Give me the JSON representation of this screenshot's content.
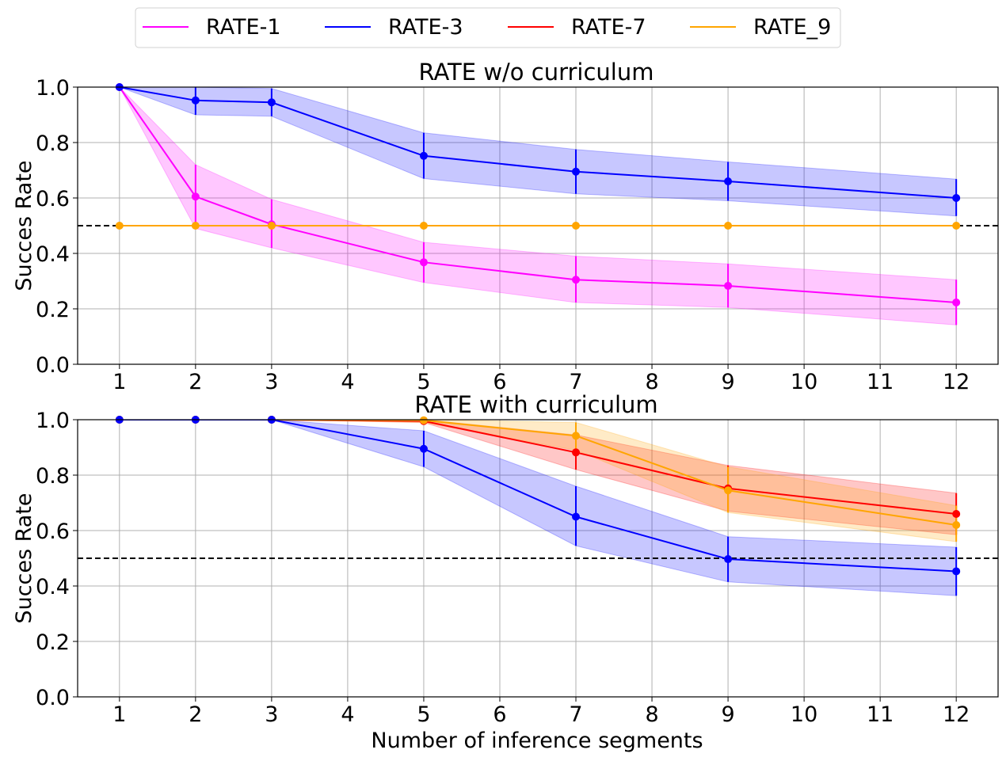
{
  "legend": {
    "entries": [
      {
        "label": "RATE-1",
        "color": "#ff00ff"
      },
      {
        "label": "RATE-3",
        "color": "#0000ff"
      },
      {
        "label": "RATE-7",
        "color": "#ff0000"
      },
      {
        "label": "RATE_9",
        "color": "#ffa500"
      }
    ]
  },
  "chart_data": [
    {
      "type": "line",
      "title": "RATE w/o curriculum",
      "xlabel": "",
      "ylabel": "Succes Rate",
      "xlim": [
        0.45,
        12.55
      ],
      "ylim": [
        0.0,
        1.0
      ],
      "xticks": [
        1,
        2,
        3,
        4,
        5,
        6,
        7,
        8,
        9,
        10,
        11,
        12
      ],
      "yticks": [
        "0.0",
        "0.2",
        "0.4",
        "0.6",
        "0.8",
        "1.0"
      ],
      "grid": true,
      "reference_line": {
        "y": 0.5,
        "style": "dashed",
        "color": "#000000"
      },
      "series": [
        {
          "name": "RATE-1",
          "color": "#ff00ff",
          "x": [
            1,
            2,
            3,
            5,
            7,
            9,
            12
          ],
          "values": [
            1.0,
            0.605,
            0.505,
            0.368,
            0.305,
            0.283,
            0.223
          ],
          "band_low": [
            1.0,
            0.49,
            0.42,
            0.295,
            0.223,
            0.205,
            0.142
          ],
          "band_high": [
            1.0,
            0.72,
            0.595,
            0.44,
            0.39,
            0.362,
            0.305
          ]
        },
        {
          "name": "RATE-3",
          "color": "#0000ff",
          "x": [
            1,
            2,
            3,
            5,
            7,
            9,
            12
          ],
          "values": [
            1.0,
            0.952,
            0.945,
            0.752,
            0.695,
            0.66,
            0.6
          ],
          "band_low": [
            1.0,
            0.9,
            0.895,
            0.67,
            0.615,
            0.59,
            0.535
          ],
          "band_high": [
            1.0,
            1.0,
            0.995,
            0.835,
            0.775,
            0.73,
            0.668
          ]
        },
        {
          "name": "RATE_9",
          "color": "#ffa500",
          "x": [
            1,
            2,
            3,
            5,
            7,
            9,
            12
          ],
          "values": [
            0.5,
            0.5,
            0.5,
            0.5,
            0.5,
            0.5,
            0.5
          ],
          "band_low": [
            0.5,
            0.5,
            0.5,
            0.5,
            0.5,
            0.5,
            0.5
          ],
          "band_high": [
            0.5,
            0.5,
            0.5,
            0.5,
            0.5,
            0.5,
            0.5
          ]
        }
      ]
    },
    {
      "type": "line",
      "title": "RATE with curriculum",
      "xlabel": "Number of inference segments",
      "ylabel": "Succes Rate",
      "xlim": [
        0.45,
        12.55
      ],
      "ylim": [
        0.0,
        1.0
      ],
      "xticks": [
        1,
        2,
        3,
        4,
        5,
        6,
        7,
        8,
        9,
        10,
        11,
        12
      ],
      "yticks": [
        "0.0",
        "0.2",
        "0.4",
        "0.6",
        "0.8",
        "1.0"
      ],
      "grid": true,
      "reference_line": {
        "y": 0.5,
        "style": "dashed",
        "color": "#000000"
      },
      "series": [
        {
          "name": "RATE-7",
          "color": "#ff0000",
          "x": [
            1,
            2,
            3,
            5,
            7,
            9,
            12
          ],
          "values": [
            1.0,
            1.0,
            1.0,
            0.995,
            0.882,
            0.752,
            0.66
          ],
          "band_low": [
            1.0,
            1.0,
            1.0,
            0.99,
            0.82,
            0.67,
            0.585
          ],
          "band_high": [
            1.0,
            1.0,
            1.0,
            1.0,
            0.945,
            0.835,
            0.735
          ]
        },
        {
          "name": "RATE_9",
          "color": "#ffa500",
          "x": [
            1,
            2,
            3,
            5,
            7,
            9,
            12
          ],
          "values": [
            1.0,
            1.0,
            1.0,
            0.998,
            0.942,
            0.745,
            0.62
          ],
          "band_low": [
            1.0,
            1.0,
            1.0,
            0.99,
            0.89,
            0.665,
            0.56
          ],
          "band_high": [
            1.0,
            1.0,
            1.0,
            1.0,
            0.99,
            0.83,
            0.69
          ]
        },
        {
          "name": "RATE-3",
          "color": "#0000ff",
          "x": [
            1,
            2,
            3,
            5,
            7,
            9,
            12
          ],
          "values": [
            1.0,
            1.0,
            1.0,
            0.895,
            0.65,
            0.497,
            0.453
          ],
          "band_low": [
            1.0,
            1.0,
            1.0,
            0.83,
            0.545,
            0.415,
            0.365
          ],
          "band_high": [
            1.0,
            1.0,
            1.0,
            0.96,
            0.76,
            0.578,
            0.54
          ]
        }
      ]
    }
  ]
}
